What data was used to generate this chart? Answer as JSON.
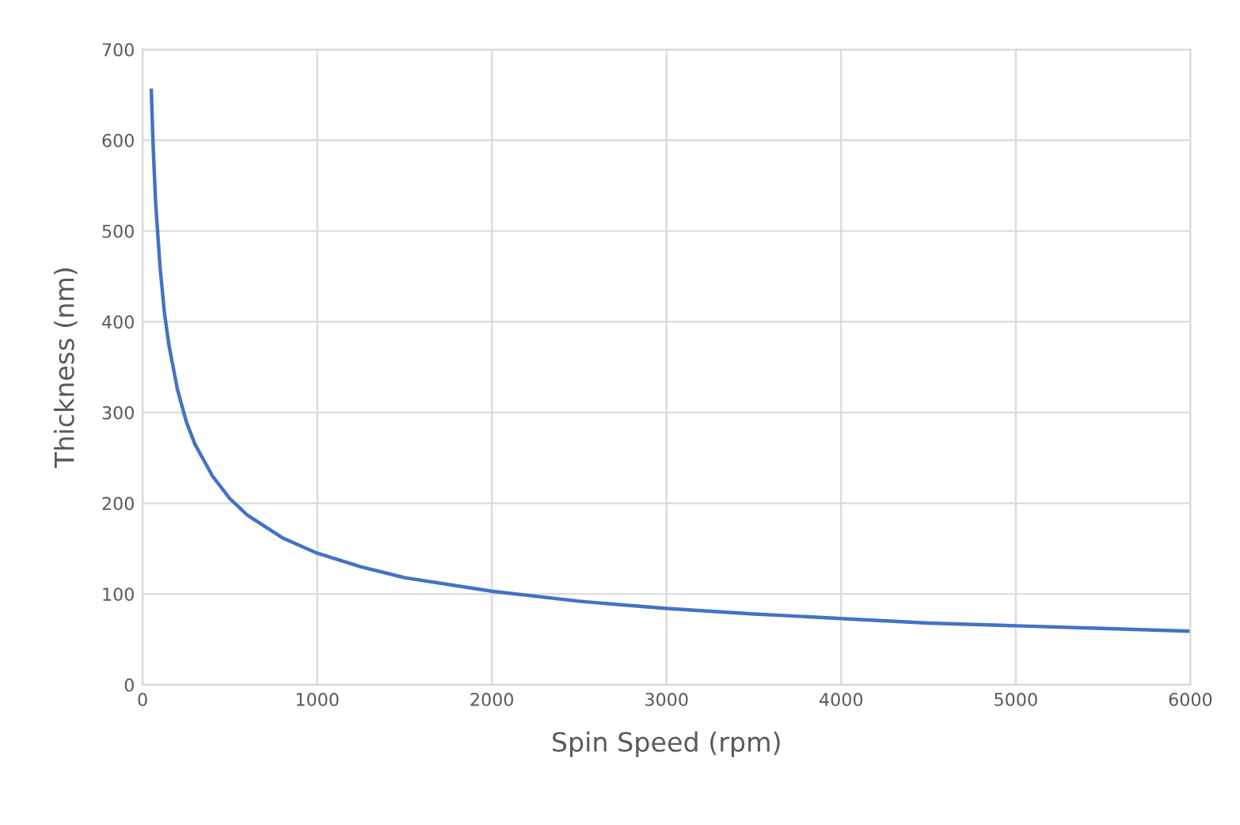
{
  "chart_data": {
    "type": "line",
    "xlabel": "Spin Speed (rpm)",
    "ylabel": "Thickness (nm)",
    "x": [
      50,
      60,
      75,
      100,
      125,
      150,
      200,
      250,
      300,
      400,
      500,
      600,
      800,
      1000,
      1250,
      1500,
      2000,
      2500,
      3000,
      3500,
      4000,
      4500,
      5000,
      5500,
      6000
    ],
    "series": [
      {
        "color": "#4472c4",
        "values": [
          655,
          595,
          530,
          460,
          410,
          375,
          325,
          290,
          265,
          230,
          205,
          187,
          162,
          145,
          130,
          118,
          103,
          92,
          84,
          78,
          73,
          68,
          65,
          62,
          59
        ]
      }
    ],
    "xlim": [
      0,
      6000
    ],
    "xticks": [
      0,
      1000,
      2000,
      3000,
      4000,
      5000,
      6000
    ],
    "ylim": [
      0,
      700
    ],
    "yticks": [
      0,
      100,
      200,
      300,
      400,
      500,
      600,
      700
    ],
    "grid": true,
    "marker": "none",
    "line_style": "solid"
  }
}
